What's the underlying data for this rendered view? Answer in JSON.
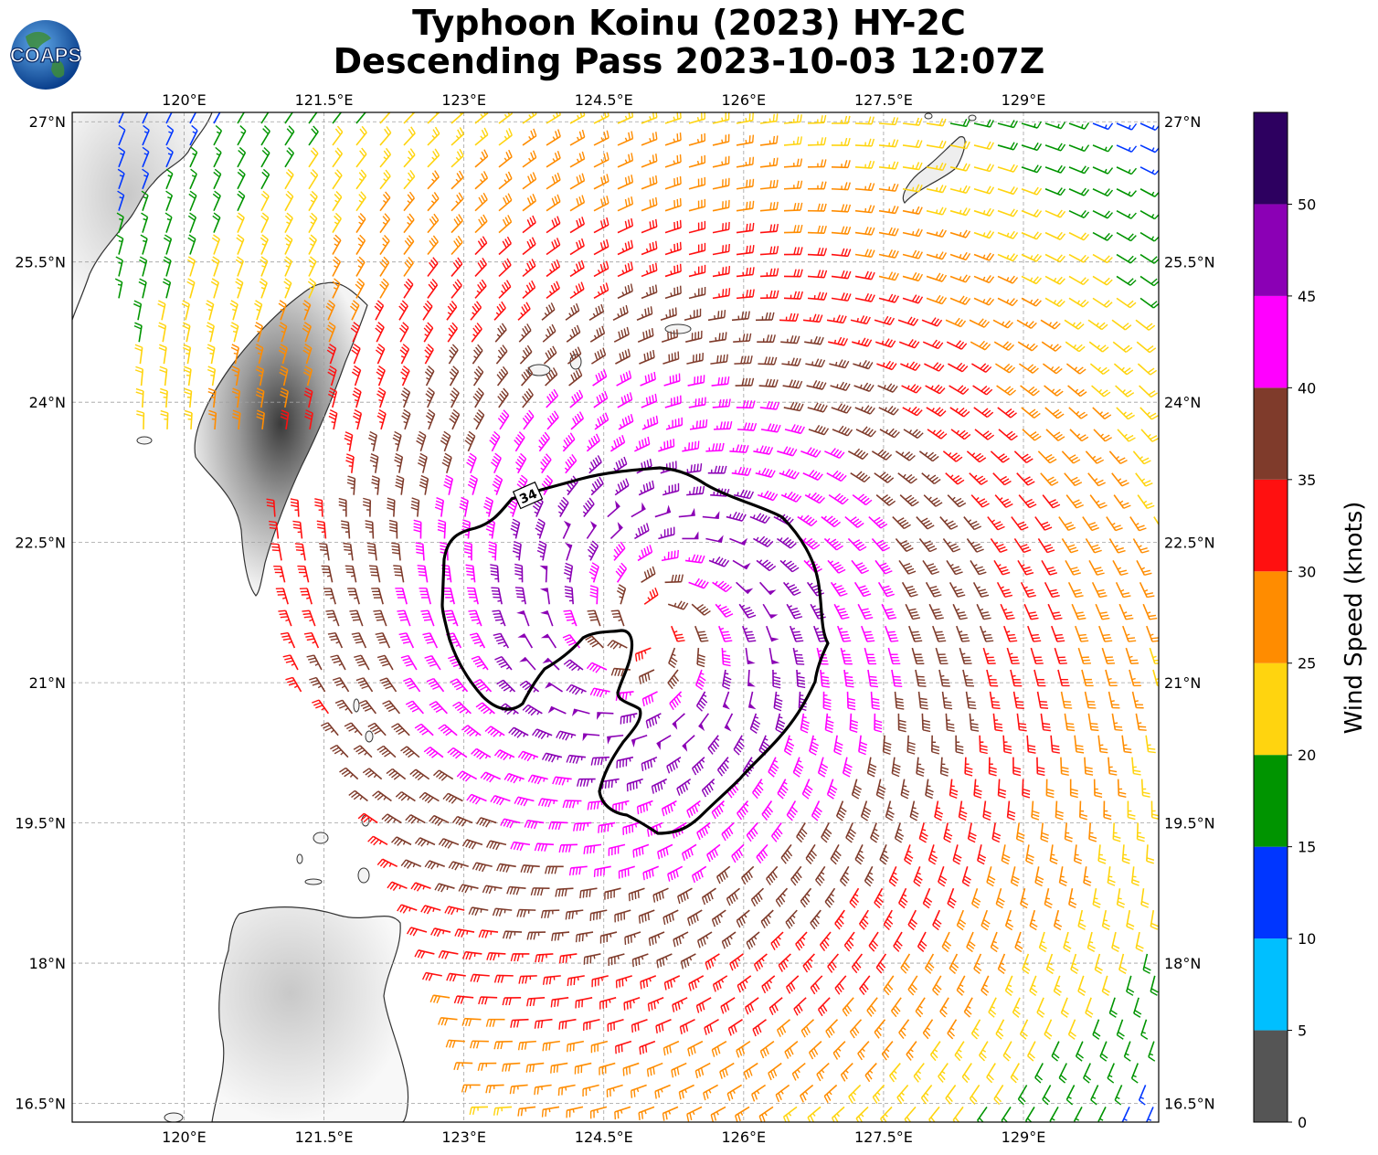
{
  "title": {
    "line1": "Typhoon Koinu (2023) HY-2C",
    "line2": "Descending Pass 2023-10-03 12:07Z"
  },
  "logo": {
    "text": "COAPS",
    "icon": "globe-icon"
  },
  "map": {
    "lon_range": [
      118.8,
      130.45
    ],
    "lat_range": [
      16.3,
      27.1
    ],
    "lon_ticks": [
      "120°E",
      "121.5°E",
      "123°E",
      "124.5°E",
      "126°E",
      "127.5°E",
      "129°E"
    ],
    "lon_tick_values": [
      120,
      121.5,
      123,
      124.5,
      126,
      127.5,
      129
    ],
    "lat_ticks": [
      "27°N",
      "25.5°N",
      "24°N",
      "22.5°N",
      "21°N",
      "19.5°N",
      "18°N",
      "16.5°N"
    ],
    "lat_tick_values": [
      27,
      25.5,
      24,
      22.5,
      21,
      19.5,
      18,
      16.5
    ],
    "storm_center": {
      "lon": 125.0,
      "lat": 21.6
    },
    "contour_label": "34",
    "contour_value": 34,
    "grid": true
  },
  "colorbar": {
    "label": "Wind Speed (knots)",
    "ticks": [
      "0",
      "5",
      "10",
      "15",
      "20",
      "25",
      "30",
      "35",
      "40",
      "45",
      "50"
    ],
    "bins": [
      0,
      5,
      10,
      15,
      20,
      25,
      30,
      35,
      40,
      45,
      50,
      55
    ],
    "colors": [
      "#555555",
      "#00bfff",
      "#0036ff",
      "#009400",
      "#ffd40f",
      "#ff8c00",
      "#ff1010",
      "#7f3b2b",
      "#ff00ff",
      "#8b00b5",
      "#2d0060"
    ]
  }
}
